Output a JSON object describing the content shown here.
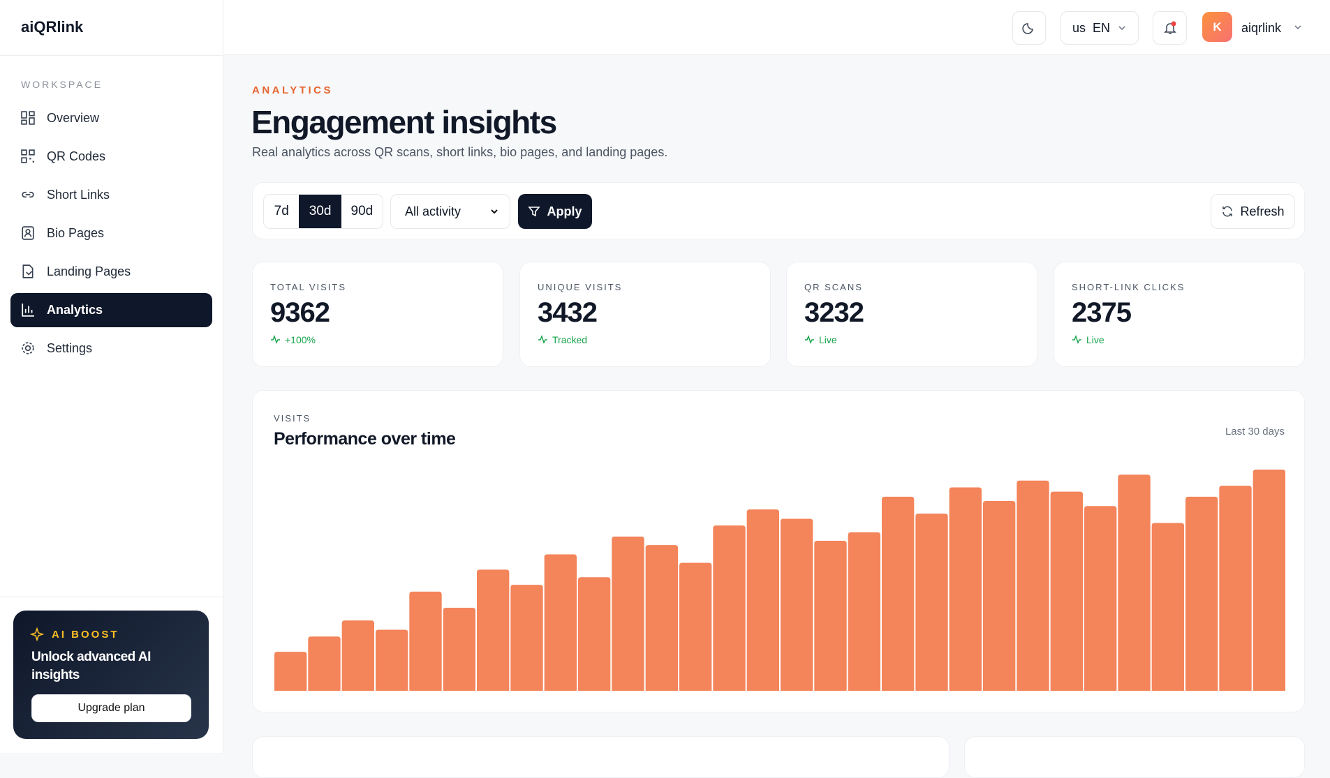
{
  "app": {
    "logo": "aiQRlink",
    "workspace_label": "WORKSPACE",
    "nav": [
      "Overview",
      "QR Codes",
      "Short Links",
      "Bio Pages",
      "Landing Pages",
      "Analytics",
      "Settings"
    ],
    "promo": {
      "eyebrow": "AI BOOST",
      "title": "Unlock advanced AI insights",
      "button": "Upgrade plan"
    },
    "topbar": {
      "lang_flag": "us",
      "lang": "EN",
      "avatar": "K",
      "user": "aiqrlink"
    }
  },
  "header": {
    "eyebrow": "ANALYTICS",
    "title": "Engagement insights",
    "subtitle": "Real analytics across QR scans, short links, bio pages, and landing pages."
  },
  "filters": {
    "ranges": [
      "7d",
      "30d",
      "90d"
    ],
    "select": "All activity",
    "apply": "Apply",
    "refresh": "Refresh"
  },
  "kpis": [
    {
      "label": "TOTAL VISITS",
      "value": "9362",
      "note": "+100%"
    },
    {
      "label": "UNIQUE VISITS",
      "value": "3432",
      "note": "Tracked"
    },
    {
      "label": "QR SCANS",
      "value": "3232",
      "note": "Live"
    },
    {
      "label": "SHORT-LINK CLICKS",
      "value": "2375",
      "note": "Live"
    }
  ],
  "chart_data": {
    "type": "bar",
    "eyebrow": "VISITS",
    "title": "Performance over time",
    "note": "Last 30 days",
    "color": "#f4845a",
    "values": [
      46,
      64,
      83,
      72,
      117,
      98,
      143,
      125,
      161,
      134,
      182,
      172,
      151,
      195,
      214,
      203,
      177,
      187,
      229,
      209,
      240,
      224,
      248,
      235,
      218,
      255,
      198,
      229,
      242,
      261
    ]
  }
}
